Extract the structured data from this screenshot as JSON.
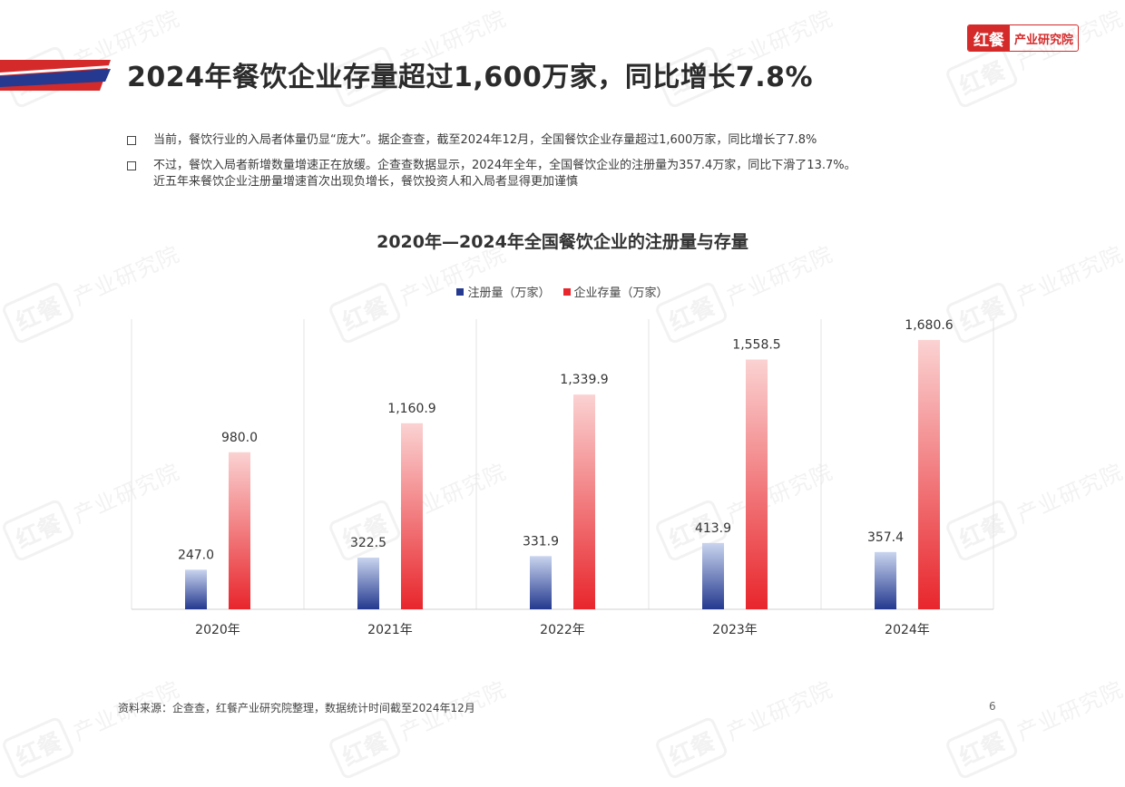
{
  "header": {
    "title": "2024年餐饮企业存量超过1,600万家，同比增长7.8%",
    "brand_mark": "红餐",
    "brand_text": "产业研究院",
    "accent_red": "#d52a2a",
    "accent_blue": "#24398f"
  },
  "bullets": [
    "当前，餐饮行业的入局者体量仍显“庞大”。据企查查，截至2024年12月，全国餐饮企业存量超过1,600万家，同比增长了7.8%",
    "不过，餐饮入局者新增数量增速正在放缓。企查查数据显示，2024年全年，全国餐饮企业的注册量为357.4万家，同比下滑了13.7%。\n近五年来餐饮企业注册量增速首次出现负增长，餐饮投资人和入局者显得更加谨慎"
  ],
  "watermark": {
    "logo": "红餐",
    "text": "产业研究院"
  },
  "chart_data": {
    "type": "bar",
    "title": "2020年—2024年全国餐饮企业的注册量与存量",
    "categories": [
      "2020年",
      "2021年",
      "2022年",
      "2023年",
      "2024年"
    ],
    "series": [
      {
        "name": "注册量（万家）",
        "values": [
          247.0,
          322.5,
          331.9,
          413.9,
          357.4
        ],
        "labels": [
          "247.0",
          "322.5",
          "331.9",
          "413.9",
          "357.4"
        ],
        "color": "#24398f"
      },
      {
        "name": "企业存量（万家）",
        "values": [
          980.0,
          1160.9,
          1339.9,
          1558.5,
          1680.6
        ],
        "labels": [
          "980.0",
          "1,160.9",
          "1,339.9",
          "1,558.5",
          "1,680.6"
        ],
        "color": "#e8262c"
      }
    ],
    "ylim": [
      0,
      1850
    ],
    "legend": "top",
    "grid": "vertical category separators"
  },
  "footer": {
    "source": "资料来源：企查查，红餐产业研究院整理，数据统计时间截至2024年12月",
    "page_number": "6"
  }
}
